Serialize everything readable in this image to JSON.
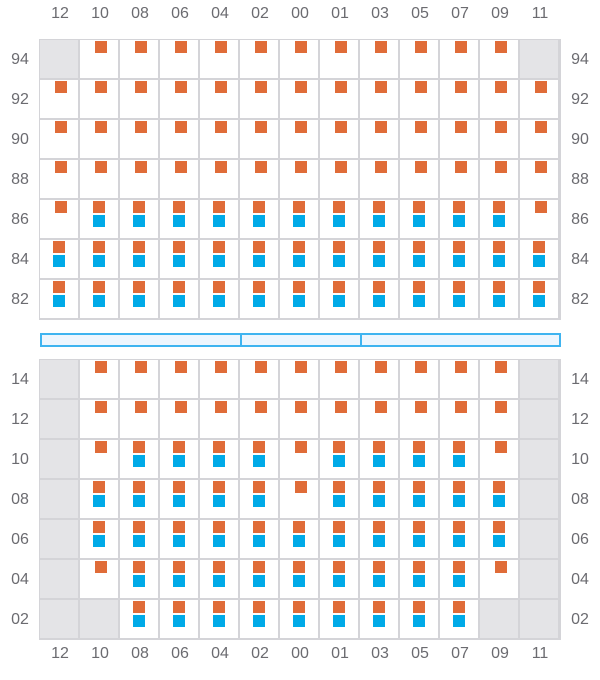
{
  "columns": [
    "12",
    "10",
    "08",
    "06",
    "04",
    "02",
    "00",
    "01",
    "03",
    "05",
    "07",
    "09",
    "11"
  ],
  "colors": {
    "orange": "#e06c38",
    "blue": "#00aae8",
    "disabled": "#e4e4e7",
    "separator": "#3fb4f0"
  },
  "legend_codes": {
    "X": "disabled",
    "O": "orange-only",
    "B": "orange-and-blue"
  },
  "top_section": {
    "rows": [
      {
        "label": "94",
        "cells": "XOOOOOOOOOOOX"
      },
      {
        "label": "92",
        "cells": "OOOOOOOOOOOOO"
      },
      {
        "label": "90",
        "cells": "OOOOOOOOOOOOO"
      },
      {
        "label": "88",
        "cells": "OOOOOOOOOOOOO"
      },
      {
        "label": "86",
        "cells": "OBBBBBBBBBBBO"
      },
      {
        "label": "84",
        "cells": "BBBBBBBBBBBBB"
      },
      {
        "label": "82",
        "cells": "BBBBBBBBBBBBB"
      }
    ]
  },
  "bottom_section": {
    "rows": [
      {
        "label": "14",
        "cells": "XOOOOOOOOOOOX"
      },
      {
        "label": "12",
        "cells": "XOOOOOOOOOOOX"
      },
      {
        "label": "10",
        "cells": "XOBBBBOBBBBOX"
      },
      {
        "label": "08",
        "cells": "XBBBBBOBBBBBX"
      },
      {
        "label": "06",
        "cells": "XBBBBBBBBBBBX"
      },
      {
        "label": "04",
        "cells": "XOBBBBBBBBBOX"
      },
      {
        "label": "02",
        "cells": "XXBBBBBBBBBXX"
      }
    ]
  }
}
